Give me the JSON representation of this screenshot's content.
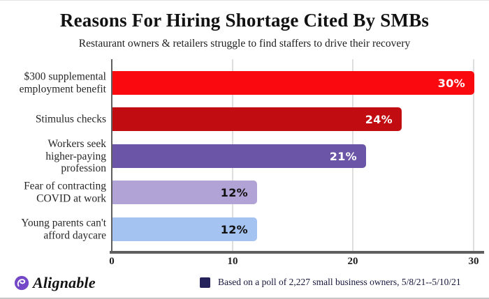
{
  "header": {
    "title": "Reasons For Hiring Shortage Cited By SMBs",
    "subtitle": "Restaurant owners & retailers struggle to find staffers to drive their recovery"
  },
  "chart_data": {
    "type": "bar",
    "orientation": "horizontal",
    "title": "Reasons For Hiring Shortage Cited By SMBs",
    "categories": [
      "$300 supplemental employment benefit",
      "Stimulus checks",
      "Workers seek higher-paying profession",
      "Fear of contracting COVID at work",
      "Young parents can't afford daycare"
    ],
    "values": [
      30,
      24,
      21,
      12,
      12
    ],
    "xlim": [
      0,
      30
    ],
    "x_ticks": [
      "0",
      "10",
      "20",
      "30"
    ],
    "grid": "vertical-gridlines-at-10-20-30",
    "bars": [
      {
        "label": "$300 supplemental\nemployment benefit",
        "value": 30,
        "display_value": "30%",
        "color": "#fa0a0f",
        "value_label_color": "#ffffff"
      },
      {
        "label": "Stimulus checks",
        "value": 24,
        "display_value": "24%",
        "color": "#c10d12",
        "value_label_color": "#ffffff"
      },
      {
        "label": "Workers seek\nhigher-paying\nprofession",
        "value": 21,
        "display_value": "21%",
        "color": "#6b55a6",
        "value_label_color": "#ffffff"
      },
      {
        "label": "Fear of contracting\nCOVID at work",
        "value": 12,
        "display_value": "12%",
        "color": "#b1a3d5",
        "value_label_color": "#111111"
      },
      {
        "label": "Young parents can't\nafford daycare",
        "value": 12,
        "display_value": "12%",
        "color": "#a4c3f0",
        "value_label_color": "#111111"
      }
    ]
  },
  "footer": {
    "logo_text": "Alignable",
    "logo_icon": "alignable-swirl-icon",
    "logo_icon_color": "#7447c8",
    "legend_label": "Based on a poll of 2,227 small business owners, 5/8/21--5/10/21",
    "legend_square_color": "#25215a"
  },
  "colors": {
    "axis": "#5f5f5f",
    "gridline": "#dedede",
    "background": "#ffffff"
  }
}
